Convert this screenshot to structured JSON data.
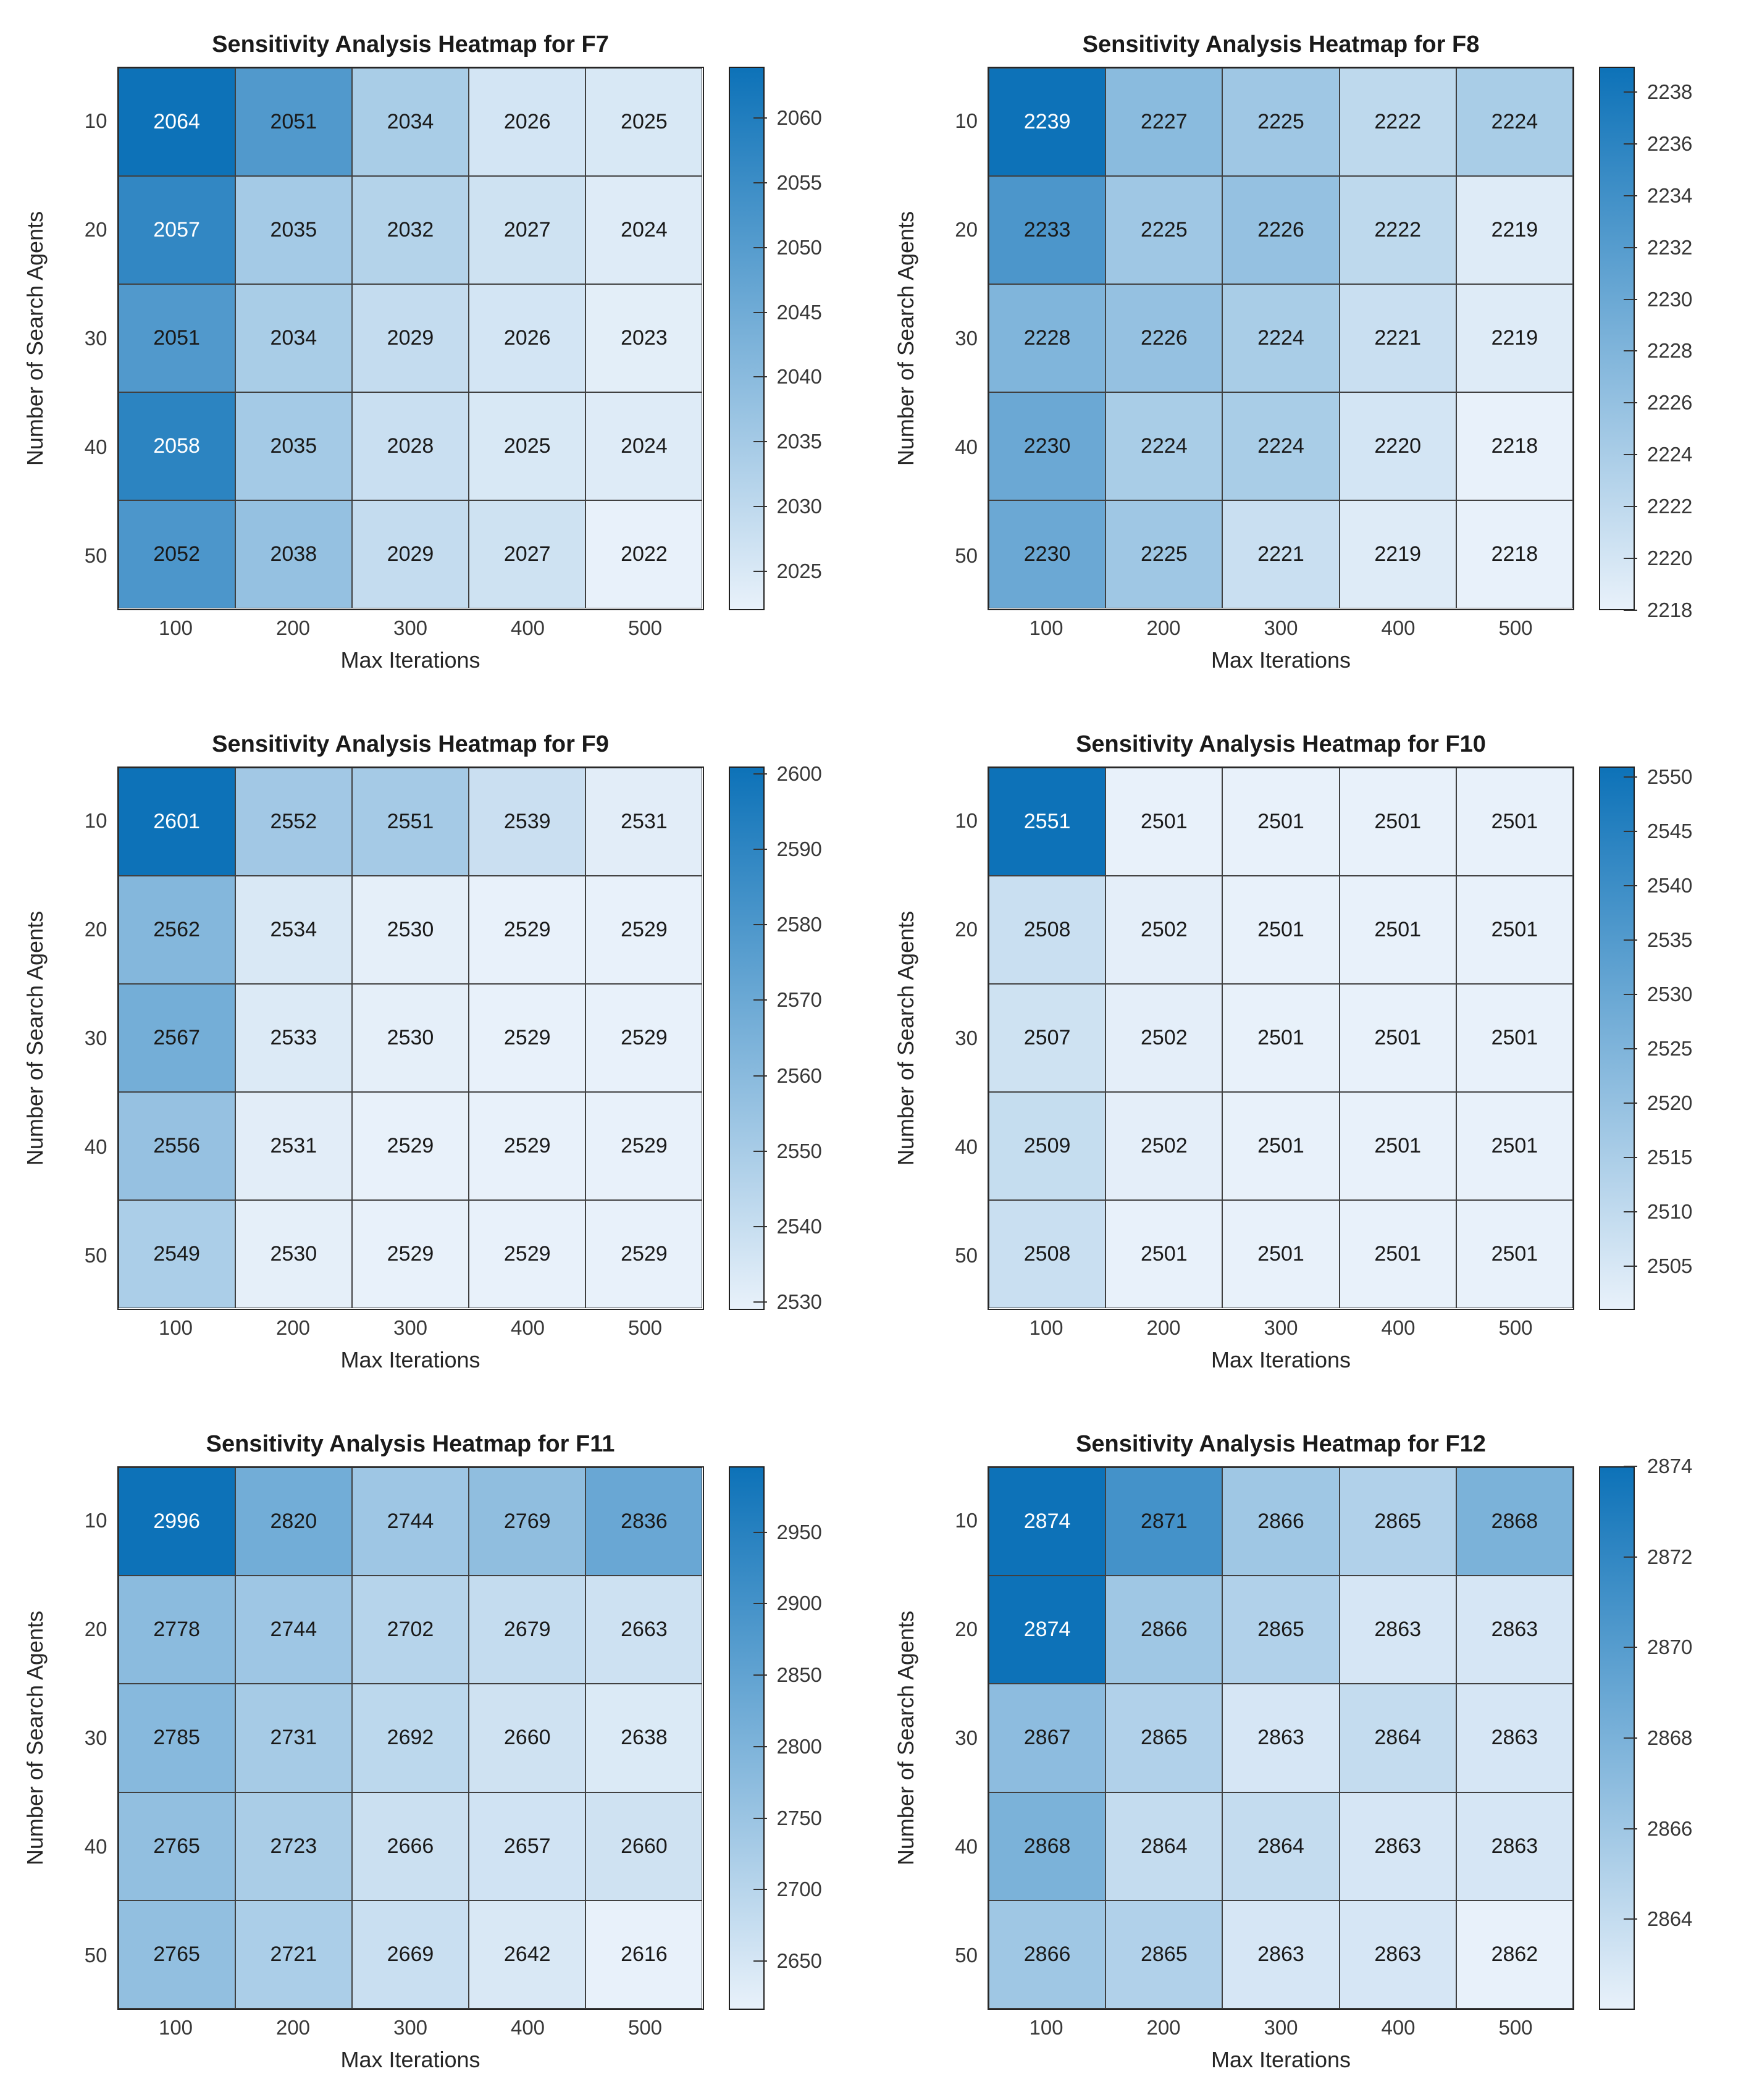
{
  "colors": {
    "background": "#ffffff",
    "colormap_low": "#e8f1fa",
    "colormap_high": "#0d72b8",
    "grid_line": "#404040",
    "axes_text": "#383838",
    "title_text": "#1a1a1a",
    "cell_text_dark": "#191919",
    "cell_text_light": "#ffffff"
  },
  "chart_data": [
    {
      "type": "heatmap",
      "id": "F7",
      "title": "Sensitivity Analysis Heatmap for F7",
      "xlabel": "Max Iterations",
      "ylabel": "Number of Search Agents",
      "x_categories": [
        "100",
        "200",
        "300",
        "400",
        "500"
      ],
      "y_categories": [
        "10",
        "20",
        "30",
        "40",
        "50"
      ],
      "values": [
        [
          2064,
          2051,
          2034,
          2026,
          2025
        ],
        [
          2057,
          2035,
          2032,
          2027,
          2024
        ],
        [
          2051,
          2034,
          2029,
          2026,
          2023
        ],
        [
          2058,
          2035,
          2028,
          2025,
          2024
        ],
        [
          2052,
          2038,
          2029,
          2027,
          2022
        ]
      ],
      "colorbar_ticks": [
        2025,
        2030,
        2035,
        2040,
        2045,
        2050,
        2055,
        2060
      ]
    },
    {
      "type": "heatmap",
      "id": "F8",
      "title": "Sensitivity Analysis Heatmap for F8",
      "xlabel": "Max Iterations",
      "ylabel": "Number of Search Agents",
      "x_categories": [
        "100",
        "200",
        "300",
        "400",
        "500"
      ],
      "y_categories": [
        "10",
        "20",
        "30",
        "40",
        "50"
      ],
      "values": [
        [
          2239,
          2227,
          2225,
          2222,
          2224
        ],
        [
          2233,
          2225,
          2226,
          2222,
          2219
        ],
        [
          2228,
          2226,
          2224,
          2221,
          2219
        ],
        [
          2230,
          2224,
          2224,
          2220,
          2218
        ],
        [
          2230,
          2225,
          2221,
          2219,
          2218
        ]
      ],
      "colorbar_ticks": [
        2218,
        2220,
        2222,
        2224,
        2226,
        2228,
        2230,
        2232,
        2234,
        2236,
        2238
      ]
    },
    {
      "type": "heatmap",
      "id": "F9",
      "title": "Sensitivity Analysis Heatmap for F9",
      "xlabel": "Max Iterations",
      "ylabel": "Number of Search Agents",
      "x_categories": [
        "100",
        "200",
        "300",
        "400",
        "500"
      ],
      "y_categories": [
        "10",
        "20",
        "30",
        "40",
        "50"
      ],
      "values": [
        [
          2601,
          2552,
          2551,
          2539,
          2531
        ],
        [
          2562,
          2534,
          2530,
          2529,
          2529
        ],
        [
          2567,
          2533,
          2530,
          2529,
          2529
        ],
        [
          2556,
          2531,
          2529,
          2529,
          2529
        ],
        [
          2549,
          2530,
          2529,
          2529,
          2529
        ]
      ],
      "colorbar_ticks": [
        2530,
        2540,
        2550,
        2560,
        2570,
        2580,
        2590,
        2600
      ]
    },
    {
      "type": "heatmap",
      "id": "F10",
      "title": "Sensitivity Analysis Heatmap for F10",
      "xlabel": "Max Iterations",
      "ylabel": "Number of Search Agents",
      "x_categories": [
        "100",
        "200",
        "300",
        "400",
        "500"
      ],
      "y_categories": [
        "10",
        "20",
        "30",
        "40",
        "50"
      ],
      "values": [
        [
          2551,
          2501,
          2501,
          2501,
          2501
        ],
        [
          2508,
          2502,
          2501,
          2501,
          2501
        ],
        [
          2507,
          2502,
          2501,
          2501,
          2501
        ],
        [
          2509,
          2502,
          2501,
          2501,
          2501
        ],
        [
          2508,
          2501,
          2501,
          2501,
          2501
        ]
      ],
      "colorbar_ticks": [
        2505,
        2510,
        2515,
        2520,
        2525,
        2530,
        2535,
        2540,
        2545,
        2550
      ]
    },
    {
      "type": "heatmap",
      "id": "F11",
      "title": "Sensitivity Analysis Heatmap for F11",
      "xlabel": "Max Iterations",
      "ylabel": "Number of Search Agents",
      "x_categories": [
        "100",
        "200",
        "300",
        "400",
        "500"
      ],
      "y_categories": [
        "10",
        "20",
        "30",
        "40",
        "50"
      ],
      "values": [
        [
          2996,
          2820,
          2744,
          2769,
          2836
        ],
        [
          2778,
          2744,
          2702,
          2679,
          2663
        ],
        [
          2785,
          2731,
          2692,
          2660,
          2638
        ],
        [
          2765,
          2723,
          2666,
          2657,
          2660
        ],
        [
          2765,
          2721,
          2669,
          2642,
          2616
        ]
      ],
      "colorbar_ticks": [
        2650,
        2700,
        2750,
        2800,
        2850,
        2900,
        2950
      ]
    },
    {
      "type": "heatmap",
      "id": "F12",
      "title": "Sensitivity Analysis Heatmap for F12",
      "xlabel": "Max Iterations",
      "ylabel": "Number of Search Agents",
      "x_categories": [
        "100",
        "200",
        "300",
        "400",
        "500"
      ],
      "y_categories": [
        "10",
        "20",
        "30",
        "40",
        "50"
      ],
      "values": [
        [
          2874,
          2871,
          2866,
          2865,
          2868
        ],
        [
          2874,
          2866,
          2865,
          2863,
          2863
        ],
        [
          2867,
          2865,
          2863,
          2864,
          2863
        ],
        [
          2868,
          2864,
          2864,
          2863,
          2863
        ],
        [
          2866,
          2865,
          2863,
          2863,
          2862
        ]
      ],
      "colorbar_ticks": [
        2864,
        2866,
        2868,
        2870,
        2872,
        2874
      ]
    }
  ]
}
